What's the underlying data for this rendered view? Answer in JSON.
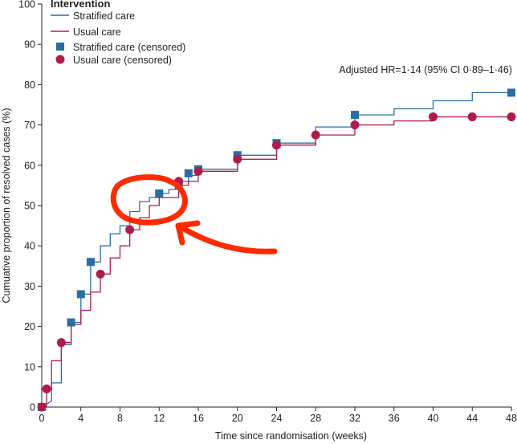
{
  "chart_data": {
    "type": "line",
    "xlabel": "Time since randomisation (weeks)",
    "ylabel": "Cumuative proportion of resolved cases (%)",
    "xlim": [
      0,
      48
    ],
    "ylim": [
      0,
      100
    ],
    "xticks": [
      0,
      4,
      8,
      12,
      16,
      20,
      24,
      28,
      32,
      36,
      40,
      44,
      48
    ],
    "yticks": [
      0,
      10,
      20,
      30,
      40,
      50,
      60,
      70,
      80,
      90,
      100
    ],
    "grid": false,
    "legend": {
      "title": "Intervention",
      "position": "top-left",
      "entries": [
        "Stratified care",
        "Usual care",
        "Stratified care (censored)",
        "Usual care (censored)"
      ]
    },
    "annotation": "Adjusted HR=1·14 (95% CI 0·89–1·46)",
    "colors": {
      "stratified": "#2a6ca4",
      "usual": "#b01c4a",
      "highlight": "#ff2a00"
    },
    "series": [
      {
        "name": "Stratified care",
        "step": [
          [
            0,
            0
          ],
          [
            1,
            1.5
          ],
          [
            1,
            6
          ],
          [
            2,
            6
          ],
          [
            2,
            15.5
          ],
          [
            3,
            15.5
          ],
          [
            3,
            21
          ],
          [
            4,
            21
          ],
          [
            4,
            28
          ],
          [
            5,
            28
          ],
          [
            5,
            36
          ],
          [
            6,
            36
          ],
          [
            6,
            40
          ],
          [
            7,
            40
          ],
          [
            7,
            43
          ],
          [
            8,
            43
          ],
          [
            8,
            45
          ],
          [
            9,
            45
          ],
          [
            9,
            48.5
          ],
          [
            10,
            48.5
          ],
          [
            10,
            51
          ],
          [
            11,
            51
          ],
          [
            11,
            52
          ],
          [
            12,
            52
          ],
          [
            12,
            53
          ],
          [
            13,
            53
          ],
          [
            13,
            54
          ],
          [
            14,
            54
          ],
          [
            14,
            56
          ],
          [
            15,
            56
          ],
          [
            15,
            57.5
          ],
          [
            16,
            57.5
          ],
          [
            16,
            59
          ],
          [
            20,
            59
          ],
          [
            20,
            62.5
          ],
          [
            24,
            62.5
          ],
          [
            24,
            65.5
          ],
          [
            28,
            65.5
          ],
          [
            28,
            69.5
          ],
          [
            32,
            69.5
          ],
          [
            32,
            72.5
          ],
          [
            36,
            72.5
          ],
          [
            36,
            74
          ],
          [
            40,
            74
          ],
          [
            40,
            76
          ],
          [
            44,
            76
          ],
          [
            44,
            78
          ],
          [
            48,
            78
          ]
        ],
        "censored": [
          [
            0,
            0
          ],
          [
            3,
            21
          ],
          [
            4,
            28
          ],
          [
            5,
            36
          ],
          [
            12,
            53
          ],
          [
            14,
            55
          ],
          [
            15,
            58
          ],
          [
            16,
            59
          ],
          [
            20,
            62.5
          ],
          [
            24,
            65.5
          ],
          [
            32,
            72.5
          ],
          [
            48,
            78
          ]
        ]
      },
      {
        "name": "Usual care",
        "step": [
          [
            0,
            0
          ],
          [
            0.5,
            0
          ],
          [
            0.5,
            4.5
          ],
          [
            1,
            4.5
          ],
          [
            1,
            11.5
          ],
          [
            2,
            11.5
          ],
          [
            2,
            16
          ],
          [
            3,
            16
          ],
          [
            3,
            20.5
          ],
          [
            4,
            20.5
          ],
          [
            4,
            24
          ],
          [
            5,
            24
          ],
          [
            5,
            28.5
          ],
          [
            6,
            28.5
          ],
          [
            6,
            33
          ],
          [
            7,
            33
          ],
          [
            7,
            37
          ],
          [
            8,
            37
          ],
          [
            8,
            40
          ],
          [
            9,
            40
          ],
          [
            9,
            44
          ],
          [
            10,
            44
          ],
          [
            10,
            47
          ],
          [
            11,
            47
          ],
          [
            11,
            50
          ],
          [
            12,
            50
          ],
          [
            12,
            52
          ],
          [
            14,
            52
          ],
          [
            14,
            55
          ],
          [
            15,
            55
          ],
          [
            15,
            56
          ],
          [
            16,
            56
          ],
          [
            16,
            58.5
          ],
          [
            20,
            58.5
          ],
          [
            20,
            61.5
          ],
          [
            24,
            61.5
          ],
          [
            24,
            65
          ],
          [
            28,
            65
          ],
          [
            28,
            67.5
          ],
          [
            32,
            67.5
          ],
          [
            32,
            70
          ],
          [
            36,
            70
          ],
          [
            36,
            71
          ],
          [
            40,
            71
          ],
          [
            40,
            72
          ],
          [
            48,
            72
          ]
        ],
        "censored": [
          [
            0,
            0
          ],
          [
            0.5,
            4.5
          ],
          [
            2,
            16
          ],
          [
            6,
            33
          ],
          [
            9,
            44
          ],
          [
            14,
            56
          ],
          [
            16,
            58.5
          ],
          [
            20,
            61.5
          ],
          [
            24,
            65
          ],
          [
            28,
            67.5
          ],
          [
            32,
            70
          ],
          [
            40,
            72
          ],
          [
            44,
            72
          ],
          [
            48,
            72
          ]
        ]
      }
    ]
  }
}
